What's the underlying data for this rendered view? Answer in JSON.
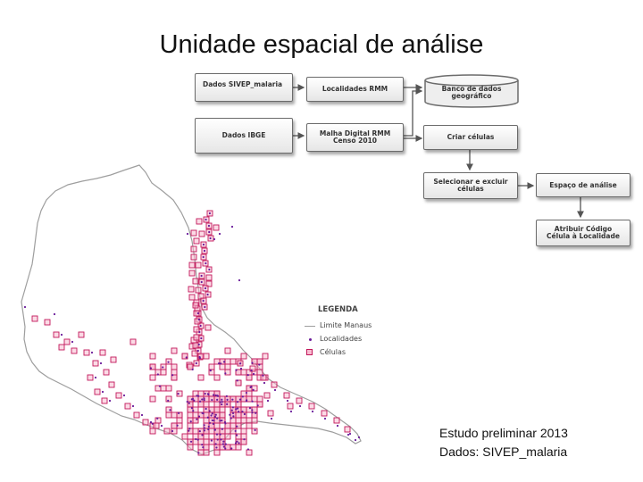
{
  "title": "Unidade espacial de análise",
  "flowchart": {
    "dados_sivep": "Dados SIVEP_malaria",
    "localidades_rmm": "Localidades RMM",
    "banco_dados": "Banco de dados\ngeográfico",
    "dados_ibge": "Dados IBGE",
    "malha_digital": "Malha Digital RMM\nCenso 2010",
    "criar_celulas": "Criar células",
    "selecionar_excluir": "Selecionar e excluir\ncélulas",
    "espaco_analise": "Espaço de análise",
    "atribuir_codigo": "Atribuir Código\nCélula à Localidade"
  },
  "legend": {
    "title": "LEGENDA",
    "items": [
      {
        "label": "Limite Manaus"
      },
      {
        "label": "Localidades"
      },
      {
        "label": "Células"
      }
    ]
  },
  "colors": {
    "cells": "#c2185b",
    "boundary": "#9e9e9e",
    "box_border": "#6b6b6b"
  },
  "note": {
    "line1": "Estudo preliminar 2013",
    "line2": "Dados: SIVEP_malaria"
  }
}
